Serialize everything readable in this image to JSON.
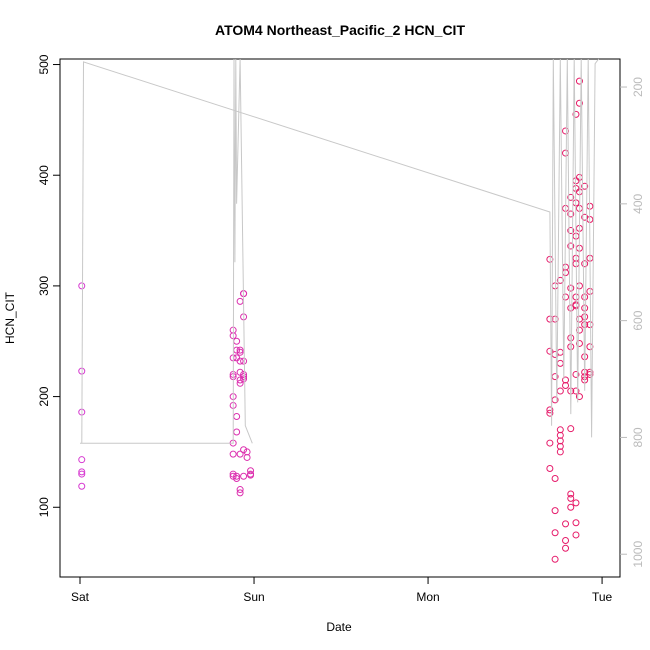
{
  "chart_data": {
    "type": "scatter",
    "title": "ATOM4 Northeast_Pacific_2 HCN_CIT",
    "x_label": "Date",
    "y_label": "HCN_CIT",
    "xlim": [
      -0.115,
      3.103
    ],
    "xticks": [
      {
        "value": 0,
        "label": "Sat"
      },
      {
        "value": 1,
        "label": "Sun"
      },
      {
        "value": 2,
        "label": "Mon"
      },
      {
        "value": 3,
        "label": "Tue"
      }
    ],
    "ylim": [
      37,
      505
    ],
    "yticks": [
      100,
      200,
      300,
      400,
      500
    ],
    "y2lim": [
      1039,
      152
    ],
    "y2ticks": [
      200,
      400,
      600,
      800,
      1000
    ],
    "point_colors": [
      "#d63bd6",
      "#e8175d"
    ],
    "line_color": "#c8c8c8",
    "series": [
      {
        "x": [
          0.01,
          0.01,
          0.01,
          0.01,
          0.01,
          0.01,
          0.01,
          0.88,
          0.88,
          0.88,
          0.88,
          0.88,
          0.88,
          0.88,
          0.88,
          0.88,
          0.88,
          0.88,
          0.9,
          0.9,
          0.9,
          0.9,
          0.9,
          0.9,
          0.9,
          0.92,
          0.92,
          0.92,
          0.92,
          0.92,
          0.92,
          0.92,
          0.92,
          0.92,
          0.92,
          0.94,
          0.94,
          0.94,
          0.94,
          0.94,
          0.94,
          0.94,
          0.94,
          0.94,
          0.96,
          0.96,
          0.98,
          0.98,
          0.98,
          2.7,
          2.7,
          2.7,
          2.7,
          2.7,
          2.7,
          2.7,
          2.73,
          2.73,
          2.73,
          2.73,
          2.73,
          2.73,
          2.73,
          2.73,
          2.73,
          2.76,
          2.76,
          2.76,
          2.76,
          2.76,
          2.76,
          2.76,
          2.76,
          2.76,
          2.79,
          2.79,
          2.79,
          2.79,
          2.79,
          2.79,
          2.79,
          2.79,
          2.79,
          2.79,
          2.79,
          2.82,
          2.82,
          2.82,
          2.82,
          2.82,
          2.82,
          2.82,
          2.82,
          2.82,
          2.82,
          2.82,
          2.82,
          2.82,
          2.85,
          2.85,
          2.85,
          2.85,
          2.85,
          2.85,
          2.85,
          2.85,
          2.85,
          2.85,
          2.85,
          2.85,
          2.85,
          2.85,
          2.85,
          2.87,
          2.87,
          2.87,
          2.87,
          2.87,
          2.87,
          2.87,
          2.87,
          2.87,
          2.87,
          2.87,
          2.87,
          2.9,
          2.9,
          2.9,
          2.9,
          2.9,
          2.9,
          2.9,
          2.9,
          2.9,
          2.9,
          2.9,
          2.93,
          2.93,
          2.93,
          2.93,
          2.93,
          2.93,
          2.93,
          2.93
        ],
        "values": [
          300,
          223,
          186,
          143,
          132,
          130,
          119,
          260,
          255,
          235,
          220,
          218,
          200,
          192,
          158,
          148,
          130,
          128,
          235,
          250,
          242,
          182,
          168,
          128,
          126,
          286,
          242,
          240,
          232,
          222,
          215,
          212,
          116,
          113,
          148,
          293,
          293,
          272,
          220,
          218,
          216,
          232,
          152,
          128,
          150,
          145,
          133,
          130,
          129,
          324,
          270,
          241,
          188,
          185,
          158,
          135,
          300,
          270,
          238,
          218,
          197,
          126,
          97,
          77,
          53,
          305,
          240,
          230,
          205,
          170,
          165,
          160,
          155,
          150,
          440,
          420,
          370,
          317,
          312,
          290,
          215,
          210,
          85,
          70,
          63,
          380,
          365,
          350,
          336,
          298,
          280,
          253,
          245,
          205,
          171,
          112,
          108,
          100,
          455,
          395,
          388,
          375,
          345,
          325,
          320,
          290,
          283,
          282,
          220,
          205,
          104,
          86,
          75,
          485,
          465,
          398,
          385,
          370,
          352,
          334,
          300,
          270,
          260,
          248,
          200,
          390,
          362,
          320,
          290,
          280,
          272,
          265,
          236,
          222,
          218,
          215,
          372,
          360,
          325,
          295,
          265,
          245,
          222,
          220
        ]
      },
      {
        "axis": "y2",
        "x": [
          0.01,
          0.02,
          2.7,
          2.71,
          2.72,
          2.74,
          2.76,
          2.78,
          2.8,
          2.82,
          2.84,
          2.86,
          2.88,
          2.9,
          2.92,
          2.94,
          2.96,
          2.98,
          null,
          0.0,
          0.88,
          0.885,
          0.89,
          0.895,
          0.9,
          0.92,
          0.95,
          0.99
        ],
        "values": [
          810,
          157,
          414,
          780,
          152,
          740,
          152,
          700,
          152,
          760,
          152,
          740,
          152,
          720,
          152,
          800,
          160,
          152,
          null,
          810,
          810,
          152,
          500,
          152,
          400,
          152,
          780,
          810
        ]
      }
    ]
  }
}
